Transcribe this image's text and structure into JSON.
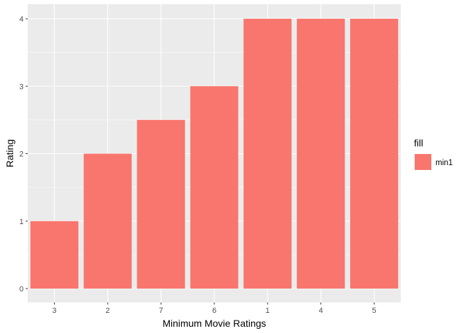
{
  "chart_data": {
    "type": "bar",
    "categories": [
      "3",
      "2",
      "7",
      "6",
      "1",
      "4",
      "5"
    ],
    "series": [
      {
        "name": "min1",
        "values": [
          1,
          2,
          2.5,
          3,
          4,
          4,
          4
        ]
      }
    ],
    "title": "",
    "xlabel": "Minimum Movie Ratings",
    "ylabel": "Rating",
    "ylim": [
      0,
      4
    ],
    "yticks": [
      0,
      1,
      2,
      3,
      4
    ],
    "grid": true,
    "legend": {
      "title": "fill",
      "placement": "right",
      "entries": [
        "min1"
      ]
    },
    "colors": {
      "panel_background": "#ebebeb",
      "grid_major": "#ffffff",
      "bar_fill": "#f8766d",
      "tick": "#333333"
    }
  }
}
